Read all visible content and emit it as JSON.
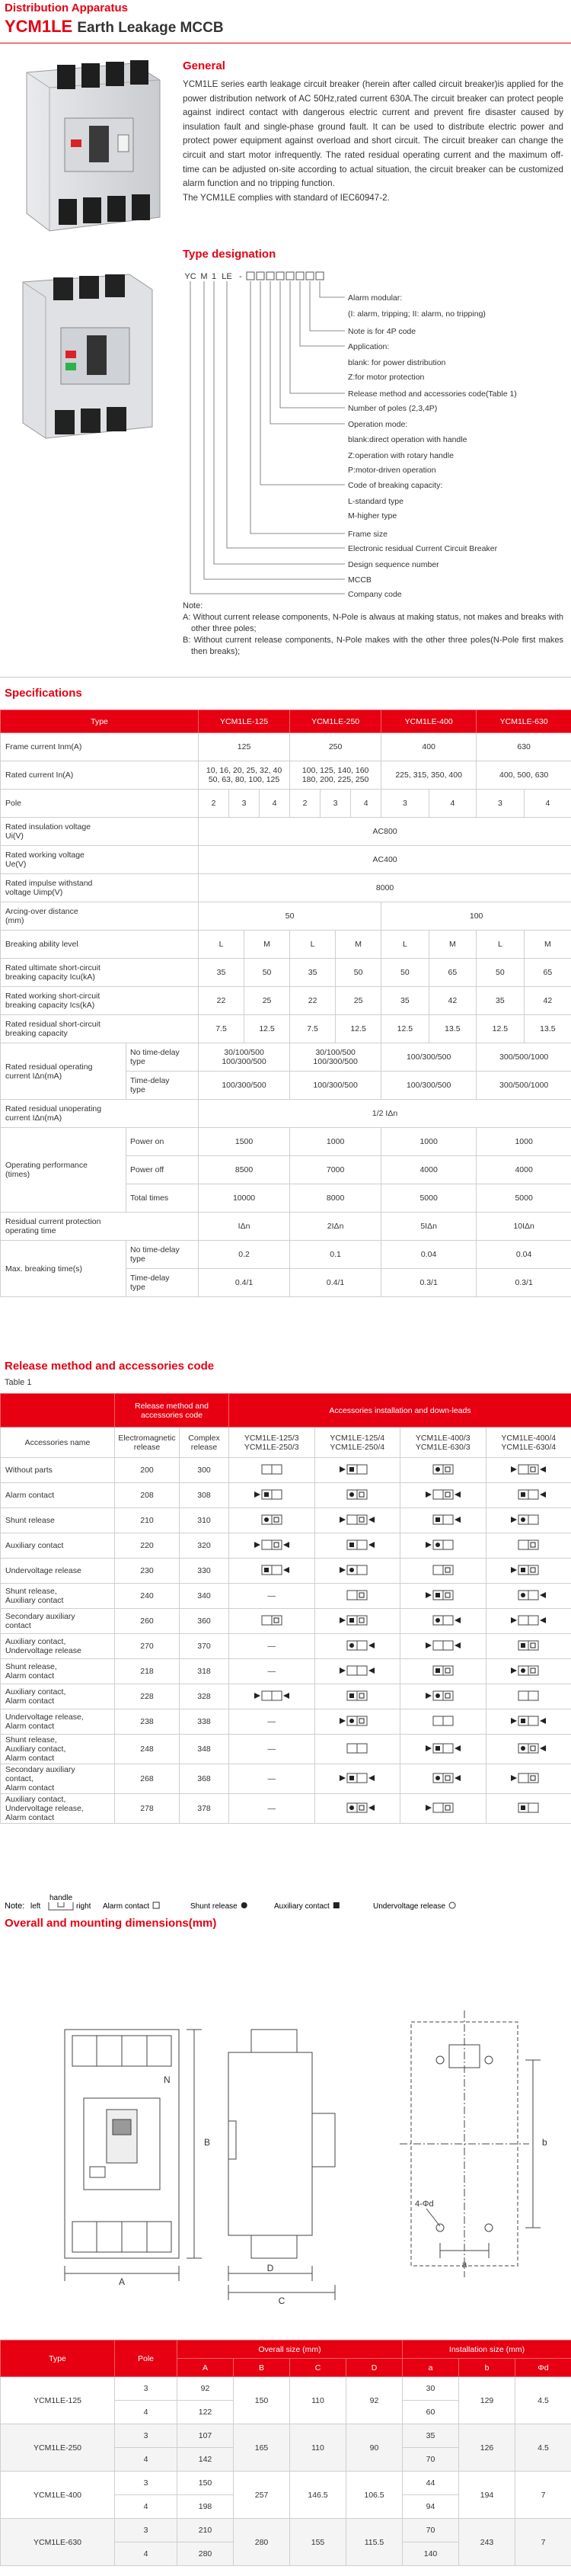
{
  "header": {
    "category": "Distribution Apparatus",
    "model": "YCM1LE",
    "title": "Earth Leakage MCCB"
  },
  "general": {
    "heading": "General",
    "paragraphs": [
      "YCM1LE series earth leakage circuit breaker (herein after called circuit breaker)is applied for the power distribution network of AC 50Hz,rated current 630A.The circuit breaker can protect people against indirect contact with dangerous electric current and prevent fire disaster caused by insulation fault and single-phase ground fault. It can be used to distribute electric power and protect power equipment against overload and short circuit. The circuit breaker can change the circuit and start motor infrequently. The rated residual operating current and the maximum off-time can be adjusted on-site according to actual situation, the circuit breaker can be customized alarm function and no tripping function.",
      "The YCM1LE complies with standard of IEC60947-2."
    ]
  },
  "type_designation": {
    "heading": "Type designation",
    "code": [
      "YC",
      "M",
      "1",
      "LE",
      "-"
    ],
    "labels": [
      "Alarm modular:",
      "(I: alarm, tripping; II: alarm, no tripping)",
      "Note is for 4P code",
      "Application:",
      "blank: for power distribution",
      "Z:for motor protection",
      "Release method and accessories code(Table 1)",
      "Number of poles (2,3,4P)",
      "Operation mode:",
      "blank:direct operation with handle",
      "Z:operation with rotary handle",
      "P:motor-driven operation",
      "Code of breaking capacity:",
      "L-standard type",
      "M-higher type",
      "Frame size",
      "Electronic residual Current Circuit Breaker",
      "Design sequence number",
      "MCCB",
      "Company code"
    ],
    "note": {
      "title": "Note:",
      "items": [
        "A: Without current release components, N-Pole is alwaus at making status, not makes and breaks with other three poles;",
        "B: Without current release components, N-Pole makes with the other three poles(N-Pole first makes then breaks);"
      ]
    }
  },
  "spec": {
    "heading": "Specifications",
    "header": [
      "Type",
      "YCM1LE-125",
      "YCM1LE-250",
      "YCM1LE-400",
      "YCM1LE-630"
    ],
    "rows": [
      {
        "label": "Frame current  Inm(A)",
        "cells": [
          125,
          250,
          400,
          630
        ]
      },
      {
        "label": "Rated current  In(A)",
        "cells": [
          [
            "10, 16, 20, 25, 32, 40",
            "50, 63, 80, 100, 125"
          ],
          [
            "100, 125, 140, 160",
            "180, 200, 225, 250"
          ],
          "225, 315, 350, 400",
          "400, 500, 630"
        ]
      },
      {
        "label": "Pole",
        "cells": [
          2,
          3,
          4,
          2,
          3,
          4,
          3,
          4,
          3,
          4
        ]
      },
      {
        "label": [
          "Rated insulation voltage",
          "Ui(V)"
        ],
        "cells": [
          "AC800"
        ]
      },
      {
        "label": [
          "Rated working voltage",
          "Ue(V)"
        ],
        "cells": [
          "AC400"
        ]
      },
      {
        "label": [
          "Rated impulse withstand",
          "voltage  Uimp(V)"
        ],
        "cells": [
          8000
        ]
      },
      {
        "label": [
          "Arcing-over distance",
          "(mm)"
        ],
        "cells": [
          50,
          100
        ]
      },
      {
        "label": "Breaking ability level",
        "cells": [
          "L",
          "M",
          "L",
          "M",
          "L",
          "M",
          "L",
          "M"
        ]
      },
      {
        "label": [
          "Rated ultimate short-circuit",
          "breaking capacity  Icu(kA)"
        ],
        "cells": [
          35,
          50,
          35,
          50,
          50,
          65,
          50,
          65
        ]
      },
      {
        "label": [
          "Rated working short-circuit",
          "breaking capacity  Ics(kA)"
        ],
        "cells": [
          22,
          25,
          22,
          25,
          35,
          42,
          35,
          42
        ]
      },
      {
        "label": [
          "Rated residual short-circuit",
          "breaking capacity"
        ],
        "cells": [
          7.5,
          12.5,
          7.5,
          12.5,
          12.5,
          13.5,
          12.5,
          13.5
        ]
      },
      {
        "label": [
          "Rated residual operating",
          "current  IΔn(mA)"
        ],
        "subrows": [
          {
            "label": [
              "No time-delay",
              "type"
            ],
            "cells": [
              [
                "30/100/500",
                "100/300/500"
              ],
              [
                "30/100/500",
                "100/300/500"
              ],
              "100/300/500",
              "300/500/1000"
            ]
          },
          {
            "label": [
              "Time-delay",
              "type"
            ],
            "cells": [
              "100/300/500",
              "100/300/500",
              "100/300/500",
              "300/500/1000"
            ]
          }
        ]
      },
      {
        "label": [
          "Rated residual unoperating",
          "current  IΔn(mA)"
        ],
        "cells": [
          "1/2 IΔn"
        ]
      },
      {
        "label": [
          "Operating performance",
          "(times)"
        ],
        "subrows": [
          {
            "label": "Power on",
            "cells": [
              1500,
              1000,
              1000,
              1000
            ]
          },
          {
            "label": "Power off",
            "cells": [
              8500,
              7000,
              4000,
              4000
            ]
          },
          {
            "label": "Total times",
            "cells": [
              10000,
              8000,
              5000,
              5000
            ]
          }
        ]
      },
      {
        "label": [
          "Residual current protection",
          "operating time"
        ],
        "cells": [
          "IΔn",
          "2IΔn",
          "5IΔn",
          "10IΔn"
        ]
      },
      {
        "label": "Max. breaking time(s)",
        "subrows": [
          {
            "label": [
              "No time-delay",
              "type"
            ],
            "cells": [
              0.2,
              0.1,
              0.04,
              0.04
            ]
          },
          {
            "label": [
              "Time-delay",
              "type"
            ],
            "cells": [
              "0.4/1",
              "0.4/1",
              "0.3/1",
              "0.3/1"
            ]
          }
        ]
      }
    ]
  },
  "release": {
    "heading": "Release method and accessories code",
    "table_label": "Table 1",
    "header_top": [
      "Release method and accessories code",
      "Accessories installation and down-leads"
    ],
    "header_sub": [
      "Accessories name",
      "Electromagnetic release",
      "Complex release",
      [
        "YCM1LE-125/3",
        "YCM1LE-250/3"
      ],
      [
        "YCM1LE-125/4",
        "YCM1LE-250/4"
      ],
      [
        "YCM1LE-400/3",
        "YCM1LE-630/3"
      ],
      [
        "YCM1LE-400/4",
        "YCM1LE-630/4"
      ]
    ],
    "rows": [
      {
        "name": "Without parts",
        "em": 200,
        "complex": 300,
        "install": [
          null,
          null,
          null,
          null
        ]
      },
      {
        "name": "Alarm contact",
        "em": 208,
        "complex": 308,
        "install": [
          null,
          null,
          null,
          null
        ]
      },
      {
        "name": "Shunt release",
        "em": 210,
        "complex": 310,
        "install": [
          null,
          null,
          null,
          null
        ]
      },
      {
        "name": "Auxiliary contact",
        "em": 220,
        "complex": 320,
        "install": [
          null,
          null,
          null,
          null
        ]
      },
      {
        "name": "Undervoltage release",
        "em": 230,
        "complex": 330,
        "install": [
          null,
          null,
          null,
          null
        ]
      },
      {
        "name": [
          "Shunt release,",
          "Auxiliary contact"
        ],
        "em": 240,
        "complex": 340,
        "install": [
          "—",
          null,
          null,
          null
        ]
      },
      {
        "name": [
          "Secondary auxiliary",
          "contact"
        ],
        "em": 260,
        "complex": 360,
        "install": [
          null,
          null,
          null,
          null
        ]
      },
      {
        "name": [
          "Auxiliary contact,",
          "Undervoltage release"
        ],
        "em": 270,
        "complex": 370,
        "install": [
          "—",
          null,
          null,
          null
        ]
      },
      {
        "name": [
          "Shunt release,",
          "Alarm contact"
        ],
        "em": 218,
        "complex": 318,
        "install": [
          "—",
          null,
          null,
          null
        ]
      },
      {
        "name": [
          "Auxiliary contact,",
          "Alarm contact"
        ],
        "em": 228,
        "complex": 328,
        "install": [
          null,
          null,
          null,
          null
        ]
      },
      {
        "name": [
          "Undervoltage release,",
          "Alarm contact"
        ],
        "em": 238,
        "complex": 338,
        "install": [
          "—",
          null,
          null,
          null
        ]
      },
      {
        "name": [
          "Shunt release,",
          "Auxiliary contact,",
          "Alarm contact"
        ],
        "em": 248,
        "complex": 348,
        "install": [
          "—",
          null,
          null,
          null
        ]
      },
      {
        "name": [
          "Secondary auxiliary",
          "contact,",
          "Alarm contact"
        ],
        "em": 268,
        "complex": 368,
        "install": [
          "—",
          null,
          null,
          null
        ]
      },
      {
        "name": [
          "Auxiliary contact,",
          "Undervoltage release,",
          "Alarm contact"
        ],
        "em": 278,
        "complex": 378,
        "install": [
          "—",
          null,
          null,
          null
        ]
      }
    ],
    "legend": {
      "label": "Note:",
      "left": "left",
      "handle": "handle",
      "right": "right",
      "items": [
        "Alarm contact",
        "Shunt release",
        "Auxiliary contact",
        "Undervoltage release"
      ]
    }
  },
  "dims": {
    "heading": "Overall and mounting dimensions(mm)",
    "drawing_labels": {
      "N": "N",
      "A": "A",
      "B": "B",
      "C": "C",
      "D": "D",
      "a": "a",
      "b": "b",
      "hole": "4-Φd"
    },
    "table": {
      "h_type": "Type",
      "h_pole": "Pole",
      "h_overall": "Overall size (mm)",
      "h_install": "Installation size (mm)",
      "cols": [
        "A",
        "B",
        "C",
        "D",
        "a",
        "b",
        "Φd"
      ],
      "rows": [
        {
          "type": "YCM1LE-125",
          "poles": [
            3,
            4
          ],
          "A": [
            92,
            122
          ],
          "B": 150,
          "C": 110,
          "D": 92,
          "a": [
            30,
            60
          ],
          "b": 129,
          "d": 4.5
        },
        {
          "type": "YCM1LE-250",
          "poles": [
            3,
            4
          ],
          "A": [
            107,
            142
          ],
          "B": 165,
          "C": 110,
          "D": 90,
          "a": [
            35,
            70
          ],
          "b": 126,
          "d": 4.5
        },
        {
          "type": "YCM1LE-400",
          "poles": [
            3,
            4
          ],
          "A": [
            150,
            198
          ],
          "B": 257,
          "C": 146.5,
          "D": 106.5,
          "a": [
            44,
            94
          ],
          "b": 194,
          "d": 7
        },
        {
          "type": "YCM1LE-630",
          "poles": [
            3,
            4
          ],
          "A": [
            210,
            280
          ],
          "B": 280,
          "C": 155,
          "D": 115.5,
          "a": [
            70,
            140
          ],
          "b": 243,
          "d": 7
        }
      ]
    }
  }
}
